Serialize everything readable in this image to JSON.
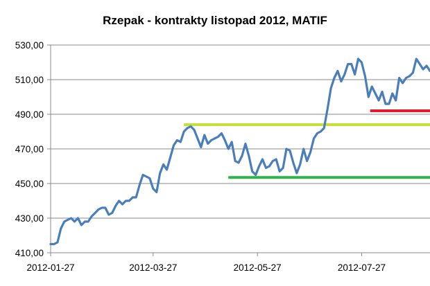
{
  "chart_data": {
    "type": "line",
    "title": "Rzepak - kontrakty listopad 2012, MATIF",
    "xlabel": "",
    "ylabel": "",
    "ylim": [
      410,
      530
    ],
    "yticks": [
      "410,00",
      "430,00",
      "450,00",
      "470,00",
      "490,00",
      "510,00",
      "530,00"
    ],
    "ytick_values": [
      410,
      430,
      450,
      470,
      490,
      510,
      530
    ],
    "xticks": [
      "2012-01-27",
      "2012-03-27",
      "2012-05-27",
      "2012-07-27"
    ],
    "xtick_dates": [
      "2012-01-27",
      "2012-03-27",
      "2012-05-27",
      "2012-07-27"
    ],
    "xlim": [
      "2012-01-27",
      "2012-09-05"
    ],
    "grid": "horizontal",
    "legend": "none",
    "series": [
      {
        "color": "#4a7ebb",
        "points": [
          [
            "2012-01-27",
            415
          ],
          [
            "2012-01-29",
            415
          ],
          [
            "2012-01-31",
            416
          ],
          [
            "2012-02-02",
            424
          ],
          [
            "2012-02-04",
            428
          ],
          [
            "2012-02-06",
            429
          ],
          [
            "2012-02-08",
            430
          ],
          [
            "2012-02-10",
            428
          ],
          [
            "2012-02-12",
            430
          ],
          [
            "2012-02-14",
            426
          ],
          [
            "2012-02-16",
            428
          ],
          [
            "2012-02-18",
            428
          ],
          [
            "2012-02-20",
            431
          ],
          [
            "2012-02-22",
            433
          ],
          [
            "2012-02-24",
            435
          ],
          [
            "2012-02-26",
            436
          ],
          [
            "2012-02-28",
            436
          ],
          [
            "2012-03-01",
            432
          ],
          [
            "2012-03-03",
            433
          ],
          [
            "2012-03-05",
            437
          ],
          [
            "2012-03-07",
            440
          ],
          [
            "2012-03-09",
            438
          ],
          [
            "2012-03-11",
            440
          ],
          [
            "2012-03-13",
            440
          ],
          [
            "2012-03-15",
            442
          ],
          [
            "2012-03-17",
            442
          ],
          [
            "2012-03-19",
            449
          ],
          [
            "2012-03-21",
            455
          ],
          [
            "2012-03-23",
            454
          ],
          [
            "2012-03-25",
            453
          ],
          [
            "2012-03-27",
            447
          ],
          [
            "2012-03-29",
            445
          ],
          [
            "2012-03-31",
            456
          ],
          [
            "2012-04-02",
            461
          ],
          [
            "2012-04-04",
            458
          ],
          [
            "2012-04-06",
            465
          ],
          [
            "2012-04-08",
            472
          ],
          [
            "2012-04-10",
            475
          ],
          [
            "2012-04-12",
            474
          ],
          [
            "2012-04-14",
            480
          ],
          [
            "2012-04-16",
            482
          ],
          [
            "2012-04-18",
            483
          ],
          [
            "2012-04-20",
            481
          ],
          [
            "2012-04-22",
            476
          ],
          [
            "2012-04-24",
            471
          ],
          [
            "2012-04-26",
            478
          ],
          [
            "2012-04-28",
            473
          ],
          [
            "2012-04-30",
            475
          ],
          [
            "2012-05-02",
            476
          ],
          [
            "2012-05-04",
            477
          ],
          [
            "2012-05-06",
            479
          ],
          [
            "2012-05-08",
            475
          ],
          [
            "2012-05-10",
            470
          ],
          [
            "2012-05-12",
            474
          ],
          [
            "2012-05-14",
            463
          ],
          [
            "2012-05-16",
            462
          ],
          [
            "2012-05-18",
            466
          ],
          [
            "2012-05-20",
            473
          ],
          [
            "2012-05-22",
            466
          ],
          [
            "2012-05-24",
            457
          ],
          [
            "2012-05-26",
            455
          ],
          [
            "2012-05-28",
            460
          ],
          [
            "2012-05-30",
            464
          ],
          [
            "2012-06-01",
            459
          ],
          [
            "2012-06-03",
            460
          ],
          [
            "2012-06-05",
            463
          ],
          [
            "2012-06-07",
            464
          ],
          [
            "2012-06-09",
            457
          ],
          [
            "2012-06-11",
            459
          ],
          [
            "2012-06-13",
            470
          ],
          [
            "2012-06-15",
            469
          ],
          [
            "2012-06-17",
            462
          ],
          [
            "2012-06-19",
            456
          ],
          [
            "2012-06-21",
            461
          ],
          [
            "2012-06-23",
            470
          ],
          [
            "2012-06-25",
            463
          ],
          [
            "2012-06-27",
            468
          ],
          [
            "2012-06-29",
            476
          ],
          [
            "2012-07-01",
            479
          ],
          [
            "2012-07-03",
            480
          ],
          [
            "2012-07-05",
            482
          ],
          [
            "2012-07-07",
            493
          ],
          [
            "2012-07-09",
            505
          ],
          [
            "2012-07-11",
            511
          ],
          [
            "2012-07-13",
            515
          ],
          [
            "2012-07-15",
            509
          ],
          [
            "2012-07-17",
            513
          ],
          [
            "2012-07-19",
            519
          ],
          [
            "2012-07-21",
            519
          ],
          [
            "2012-07-23",
            513
          ],
          [
            "2012-07-25",
            522
          ],
          [
            "2012-07-27",
            520
          ],
          [
            "2012-07-29",
            512
          ],
          [
            "2012-07-31",
            500
          ],
          [
            "2012-08-02",
            506
          ],
          [
            "2012-08-04",
            502
          ],
          [
            "2012-08-06",
            498
          ],
          [
            "2012-08-08",
            503
          ],
          [
            "2012-08-10",
            496
          ],
          [
            "2012-08-12",
            496
          ],
          [
            "2012-08-14",
            502
          ],
          [
            "2012-08-16",
            498
          ],
          [
            "2012-08-18",
            511
          ],
          [
            "2012-08-20",
            508
          ],
          [
            "2012-08-22",
            511
          ],
          [
            "2012-08-24",
            512
          ],
          [
            "2012-08-26",
            514
          ],
          [
            "2012-08-28",
            522
          ],
          [
            "2012-08-30",
            519
          ],
          [
            "2012-09-01",
            516
          ],
          [
            "2012-09-03",
            518
          ],
          [
            "2012-09-05",
            515
          ]
        ]
      }
    ],
    "reference_lines": [
      {
        "value": 484,
        "color": "#c6e03a",
        "from": "2012-04-14",
        "to": "2012-09-05"
      },
      {
        "value": 453.5,
        "color": "#2eb24a",
        "from": "2012-05-10",
        "to": "2012-09-05"
      },
      {
        "value": 492,
        "color": "#e4192a",
        "from": "2012-08-01",
        "to": "2012-09-05"
      }
    ]
  }
}
